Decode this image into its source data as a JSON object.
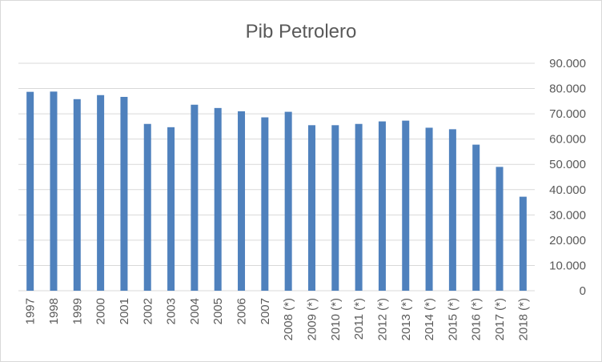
{
  "chart_data": {
    "type": "bar",
    "title": "Pib Petrolero",
    "xlabel": "",
    "ylabel": "",
    "categories": [
      "1997",
      "1998",
      "1999",
      "2000",
      "2001",
      "2002",
      "2003",
      "2004",
      "2005",
      "2006",
      "2007",
      "2008 (*)",
      "2009 (*)",
      "2010 (*)",
      "2011 (*)",
      "2012 (*)",
      "2013 (*)",
      "2014 (*)",
      "2015 (*)",
      "2016 (*)",
      "2017 (*)",
      "2018 (*)"
    ],
    "values": [
      78700,
      78800,
      75800,
      77400,
      76700,
      66000,
      64700,
      73600,
      72300,
      71000,
      68600,
      70800,
      65500,
      65500,
      66000,
      67000,
      67300,
      64500,
      63900,
      57800,
      49000,
      37200
    ],
    "ylim": [
      0,
      90000
    ],
    "yticks": [
      0,
      10000,
      20000,
      30000,
      40000,
      50000,
      60000,
      70000,
      80000,
      90000
    ],
    "ytick_labels": [
      "0",
      "10.000",
      "20.000",
      "30.000",
      "40.000",
      "50.000",
      "60.000",
      "70.000",
      "80.000",
      "90.000"
    ],
    "yaxis_position": "right",
    "grid": true,
    "legend": "none",
    "bar_color": "#4f81bd",
    "grid_color": "#d9d9d9"
  }
}
